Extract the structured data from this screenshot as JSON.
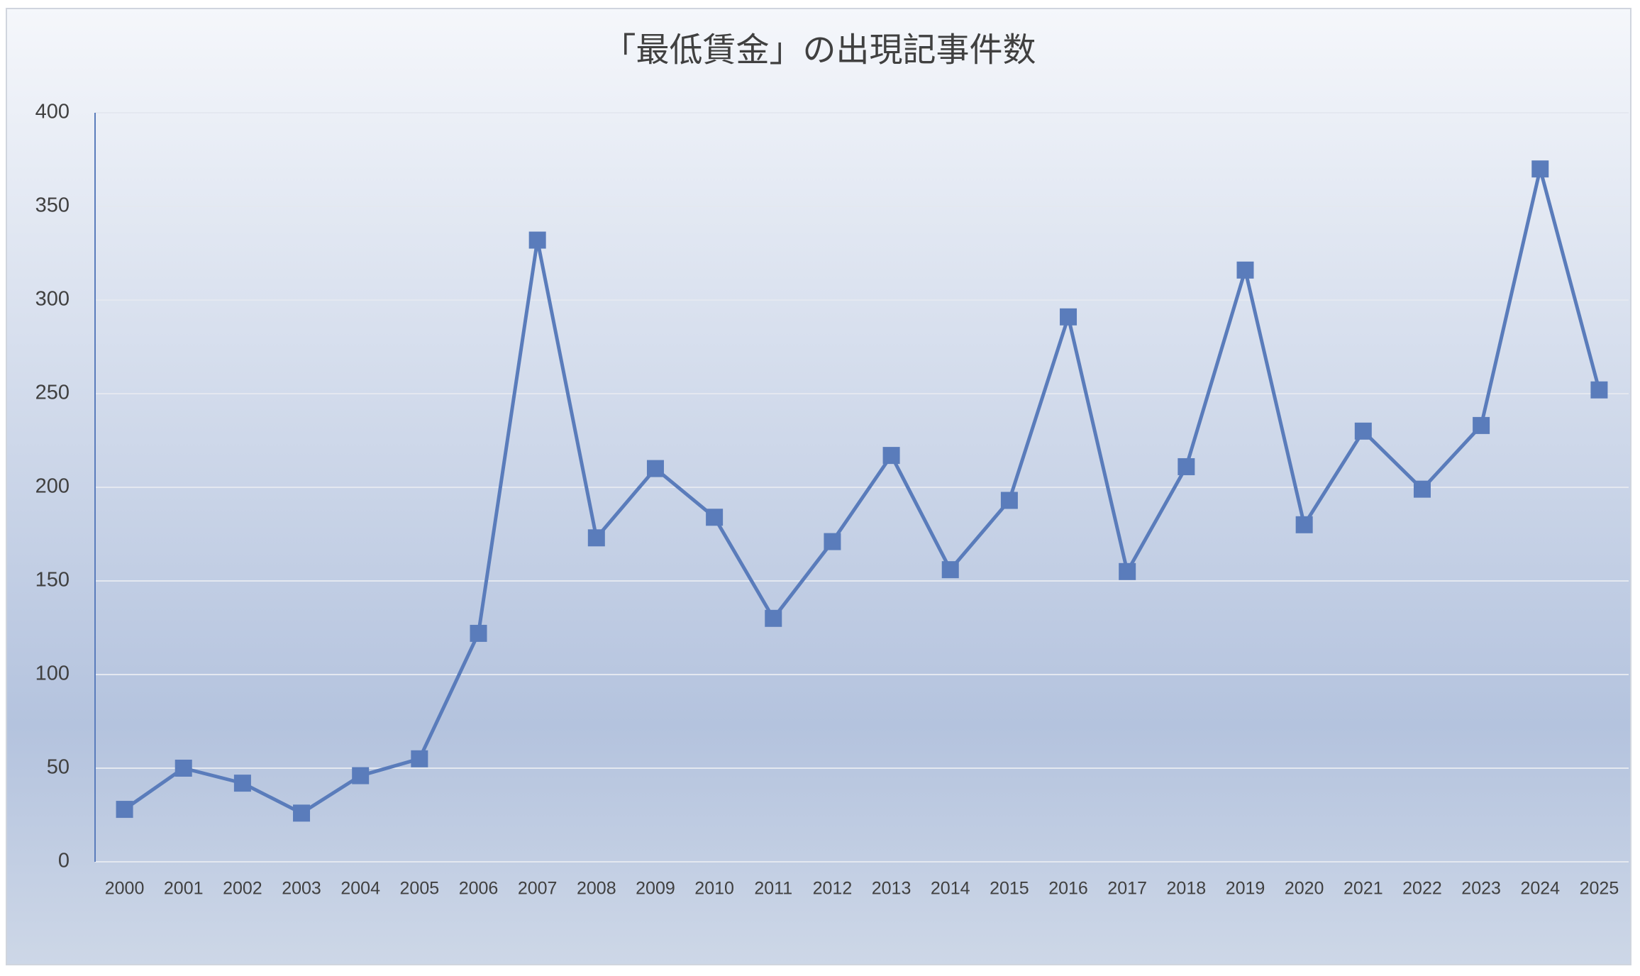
{
  "chart_data": {
    "type": "line",
    "title": "「最低賃金」の出現記事件数",
    "categories": [
      "2000",
      "2001",
      "2002",
      "2003",
      "2004",
      "2005",
      "2006",
      "2007",
      "2008",
      "2009",
      "2010",
      "2011",
      "2012",
      "2013",
      "2014",
      "2015",
      "2016",
      "2017",
      "2018",
      "2019",
      "2020",
      "2021",
      "2022",
      "2023",
      "2024",
      "2025"
    ],
    "values": [
      28,
      50,
      42,
      26,
      46,
      55,
      122,
      332,
      173,
      210,
      184,
      130,
      171,
      217,
      156,
      193,
      291,
      155,
      211,
      316,
      180,
      230,
      199,
      233,
      370,
      252
    ],
    "color": "#5a7cbb",
    "ylim": [
      0,
      400
    ],
    "yticks": [
      0,
      50,
      100,
      150,
      200,
      250,
      300,
      350,
      400
    ],
    "grid": true
  }
}
